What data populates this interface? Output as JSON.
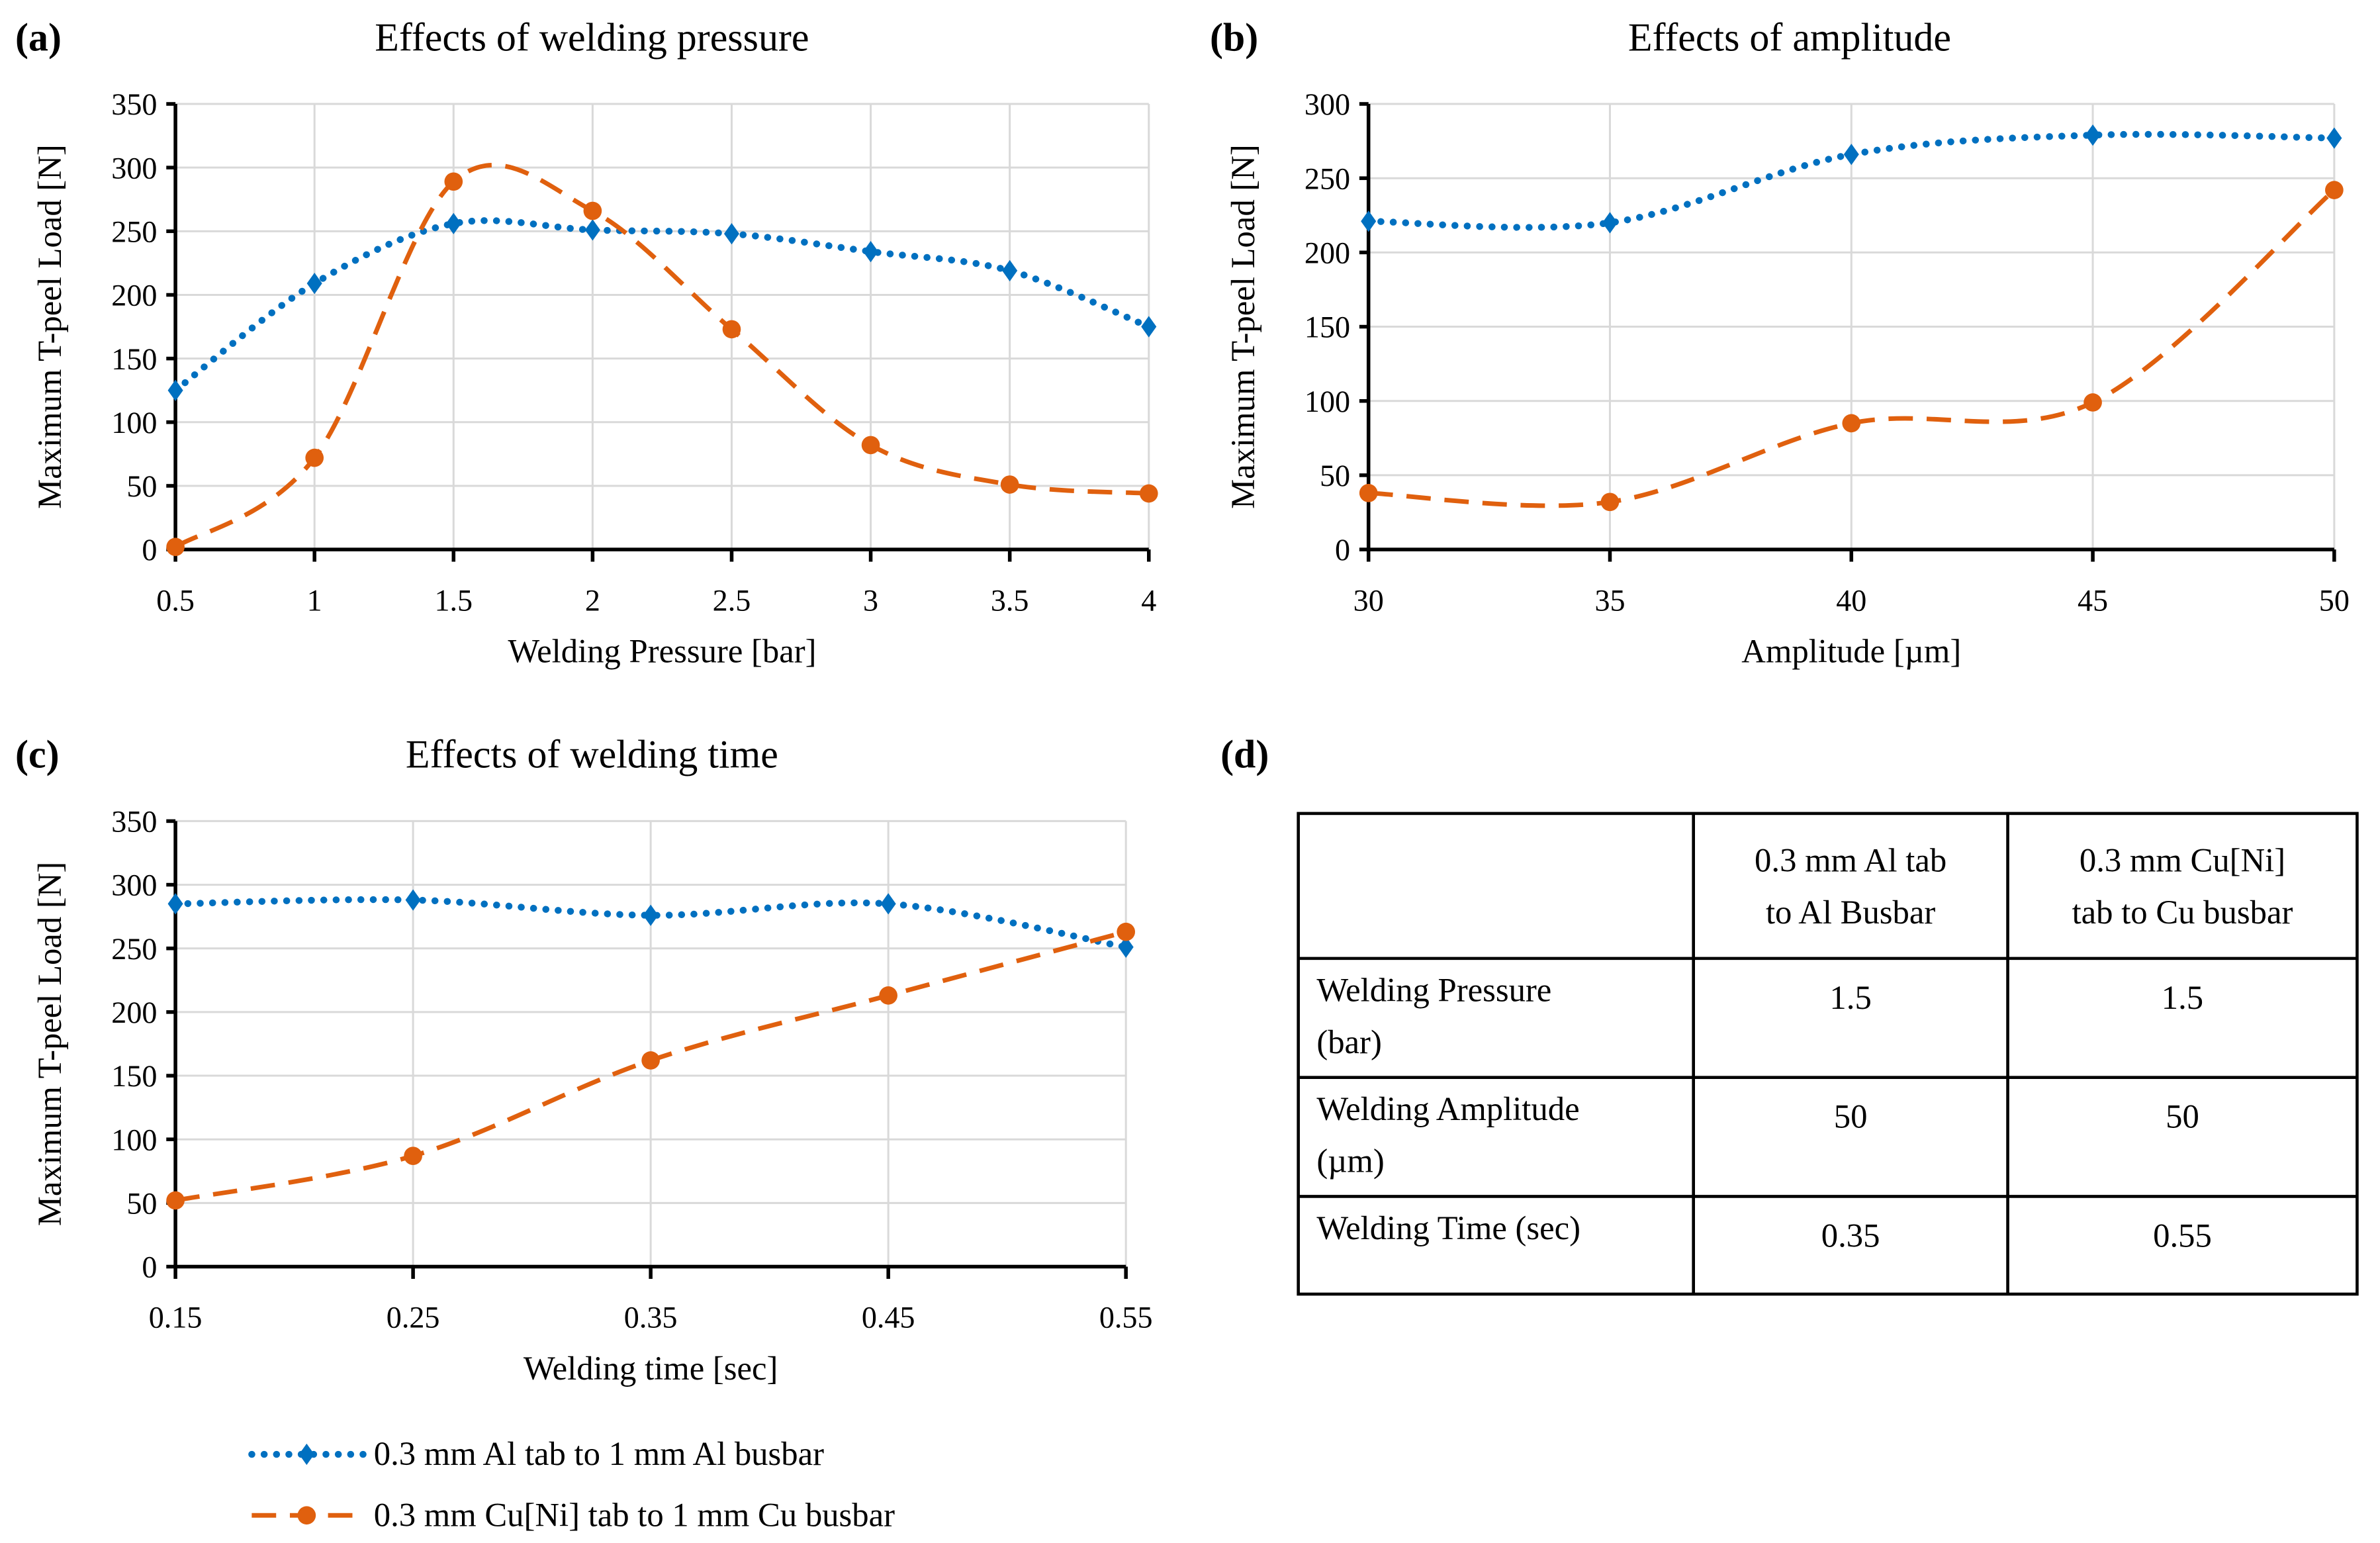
{
  "colors": {
    "al": "#0070c0",
    "cu": "#e0600e"
  },
  "legend": [
    {
      "label": "0.3 mm Al tab to 1 mm Al busbar",
      "series": "al",
      "marker": "diamond",
      "style": "dotted"
    },
    {
      "label": "0.3 mm Cu[Ni] tab to 1 mm Cu busbar",
      "series": "cu",
      "marker": "circle",
      "style": "dashed"
    }
  ],
  "chart_data": [
    {
      "panel": "(a)",
      "type": "line",
      "title": "Effects of welding pressure",
      "xlabel": "Welding Pressure [bar]",
      "ylabel": "Maximum  T-peel Load [N]",
      "x": [
        0.5,
        1,
        1.5,
        2,
        2.5,
        3,
        3.5,
        4
      ],
      "x_tick_labels": [
        "0.5",
        "1",
        "1.5",
        "2",
        "2.5",
        "3",
        "3.5",
        "4"
      ],
      "xlim": [
        0.5,
        4
      ],
      "ylim": [
        0,
        350
      ],
      "y_ticks": [
        0,
        50,
        100,
        150,
        200,
        250,
        300,
        350
      ],
      "grid": true,
      "series": [
        {
          "name": "0.3 mm Al tab to 1 mm Al busbar",
          "key": "al",
          "values": [
            125,
            209,
            256,
            251,
            248,
            234,
            219,
            175
          ]
        },
        {
          "name": "0.3 mm Cu[Ni] tab to 1 mm Cu busbar",
          "key": "cu",
          "values": [
            2,
            72,
            289,
            266,
            173,
            82,
            51,
            44
          ]
        }
      ]
    },
    {
      "panel": "(b)",
      "type": "line",
      "title": "Effects of amplitude",
      "xlabel": "Amplitude  [µm]",
      "ylabel": "Maximum  T-peel Load [N]",
      "x": [
        30,
        35,
        40,
        45,
        50
      ],
      "x_tick_labels": [
        "30",
        "35",
        "40",
        "45",
        "50"
      ],
      "xlim": [
        30,
        50
      ],
      "ylim": [
        0,
        300
      ],
      "y_ticks": [
        0,
        50,
        100,
        150,
        200,
        250,
        300
      ],
      "grid": true,
      "series": [
        {
          "name": "0.3 mm Al tab to 1 mm Al busbar",
          "key": "al",
          "values": [
            221,
            220,
            266,
            279,
            277
          ]
        },
        {
          "name": "0.3 mm Cu[Ni] tab to 1 mm Cu busbar",
          "key": "cu",
          "values": [
            38,
            32,
            85,
            99,
            242
          ]
        }
      ]
    },
    {
      "panel": "(c)",
      "type": "line",
      "title": "Effects of welding time",
      "xlabel": "Welding time [sec]",
      "ylabel": "Maximum  T-peel Load [N]",
      "x": [
        0.15,
        0.25,
        0.35,
        0.45,
        0.55
      ],
      "x_tick_labels": [
        "0.15",
        "0.25",
        "0.35",
        "0.45",
        "0.55"
      ],
      "xlim": [
        0.15,
        0.55
      ],
      "ylim": [
        0,
        350
      ],
      "y_ticks": [
        0,
        50,
        100,
        150,
        200,
        250,
        300,
        350
      ],
      "grid": true,
      "series": [
        {
          "name": "0.3 mm Al tab to 1 mm Al busbar",
          "key": "al",
          "values": [
            285,
            288,
            276,
            285,
            251
          ]
        },
        {
          "name": "0.3 mm Cu[Ni] tab to 1 mm Cu busbar",
          "key": "cu",
          "values": [
            52,
            87,
            162,
            213,
            263
          ]
        }
      ]
    }
  ],
  "table": {
    "panel": "(d)",
    "headers": [
      "",
      "0.3 mm Al tab|to Al Busbar",
      "0.3 mm Cu[Ni]|tab to Cu busbar"
    ],
    "rows": [
      [
        "Welding Pressure|(bar)",
        "1.5",
        "1.5"
      ],
      [
        "Welding Amplitude|(µm)",
        "50",
        "50"
      ],
      [
        "Welding Time (sec)",
        "0.35",
        "0.55"
      ]
    ]
  }
}
